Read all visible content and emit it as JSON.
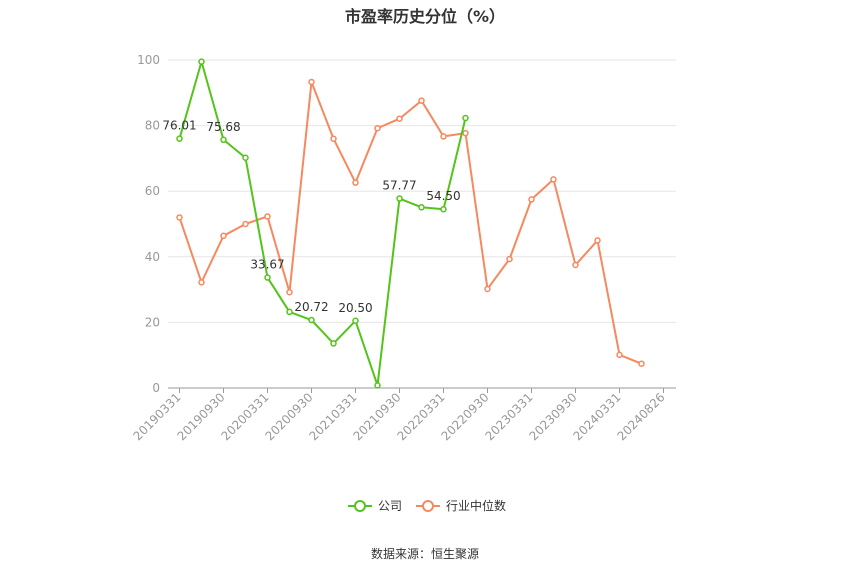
{
  "chart_data": {
    "type": "line",
    "title": "市盈率历史分位（%）",
    "x_ticks": [
      "20190331",
      "20190930",
      "20200331",
      "20200930",
      "20210331",
      "20210930",
      "20220331",
      "20220930",
      "20230331",
      "20230930",
      "20240331",
      "20240826"
    ],
    "ylim": [
      0,
      100
    ],
    "y_ticks": [
      0,
      20,
      40,
      60,
      80,
      100
    ],
    "series": [
      {
        "name": "公司",
        "color": "#52c41a",
        "values": [
          76.01,
          99.5,
          75.68,
          70.2,
          33.67,
          23.2,
          20.72,
          13.6,
          20.5,
          0.8,
          57.77,
          55.1,
          54.5,
          82.3
        ]
      },
      {
        "name": "行业中位数",
        "color": "#f5895f",
        "values": [
          52.0,
          32.2,
          46.4,
          50.0,
          52.3,
          29.2,
          93.3,
          76.0,
          62.6,
          79.2,
          82.1,
          87.6,
          76.7,
          77.7,
          30.2,
          39.3,
          57.5,
          63.6,
          37.5,
          45.0,
          10.1,
          7.4
        ]
      }
    ],
    "data_labels": [
      {
        "series": 0,
        "index": 0,
        "text": "76.01"
      },
      {
        "series": 0,
        "index": 2,
        "text": "75.68"
      },
      {
        "series": 0,
        "index": 4,
        "text": "33.67"
      },
      {
        "series": 0,
        "index": 6,
        "text": "20.72"
      },
      {
        "series": 0,
        "index": 8,
        "text": "20.50"
      },
      {
        "series": 0,
        "index": 10,
        "text": "57.77"
      },
      {
        "series": 0,
        "index": 12,
        "text": "54.50"
      }
    ],
    "grid": true,
    "legend_position": "bottom-center"
  },
  "source_text": "数据来源：恒生聚源"
}
